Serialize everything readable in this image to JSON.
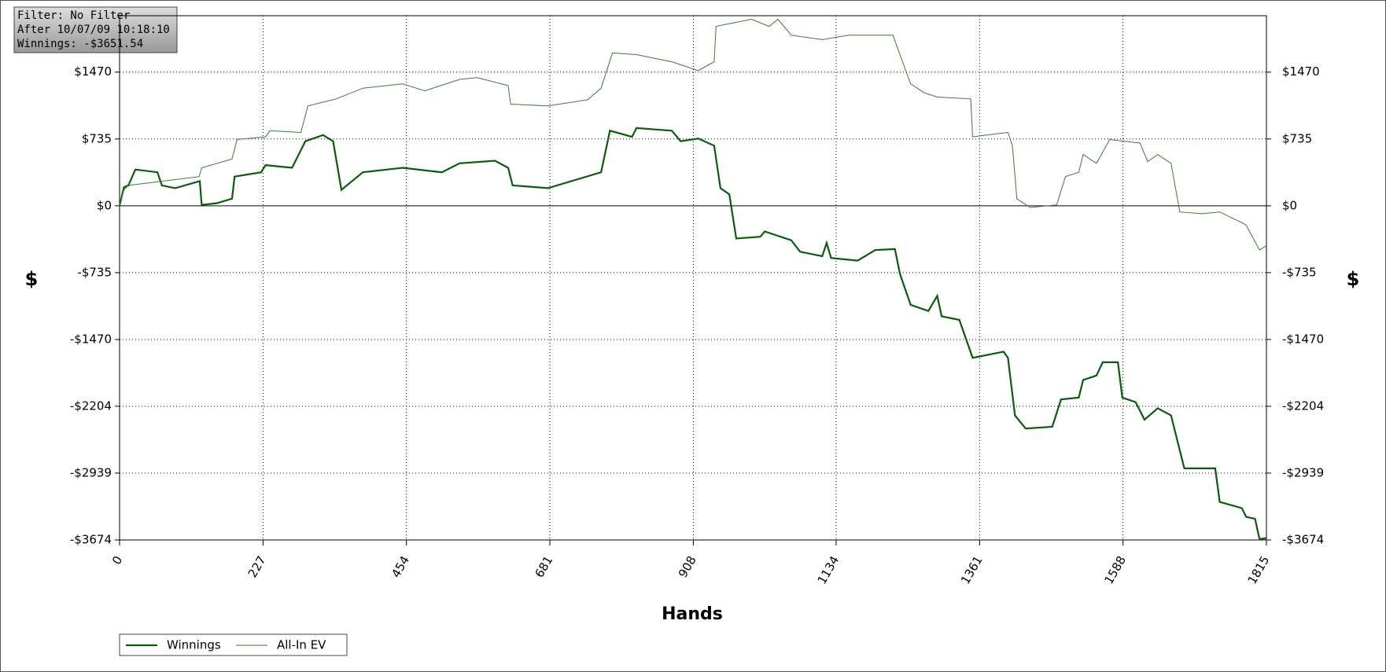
{
  "chart_data": {
    "type": "line",
    "annotations": [
      "Filter: No Filter",
      "After 10/07/09 10:18:10",
      "Winnings: -$3651.54"
    ],
    "x_label": "Hands",
    "y_label": "$",
    "y2_label": "$",
    "xlim": [
      0,
      1815
    ],
    "xticks": [
      0,
      227,
      454,
      681,
      908,
      1134,
      1361,
      1588,
      1815
    ],
    "ylim": [
      -3674,
      2090
    ],
    "yticks": [
      {
        "value": 1470,
        "label": "$1470"
      },
      {
        "value": 735,
        "label": "$735"
      },
      {
        "value": 0,
        "label": "$0"
      },
      {
        "value": -735,
        "label": "-$735"
      },
      {
        "value": -1470,
        "label": "-$1470"
      },
      {
        "value": -2204,
        "label": "-$2204"
      },
      {
        "value": -2939,
        "label": "-$2939"
      },
      {
        "value": -3674,
        "label": "-$3674"
      }
    ],
    "grid": true,
    "legend": "bottom-left",
    "series": [
      {
        "name": "Winnings",
        "color": "#0a5c0a",
        "x": [
          0,
          7,
          14,
          25,
          60,
          67,
          88,
          127,
          130,
          154,
          178,
          182,
          224,
          231,
          273,
          294,
          322,
          338,
          351,
          385,
          448,
          510,
          538,
          594,
          615,
          622,
          678,
          762,
          776,
          811,
          818,
          874,
          888,
          916,
          941,
          951,
          965,
          976,
          1014,
          1021,
          1063,
          1077,
          1112,
          1119,
          1126,
          1168,
          1196,
          1227,
          1235,
          1252,
          1280,
          1294,
          1301,
          1329,
          1350,
          1385,
          1399,
          1406,
          1417,
          1434,
          1476,
          1490,
          1518,
          1525,
          1546,
          1556,
          1580,
          1587,
          1608,
          1622,
          1643,
          1664,
          1685,
          1734,
          1741,
          1776,
          1783,
          1797,
          1804,
          1815
        ],
        "values": [
          0,
          204,
          224,
          399,
          369,
          224,
          194,
          272,
          10,
          29,
          78,
          321,
          369,
          447,
          418,
          710,
          778,
          710,
          175,
          369,
          418,
          369,
          467,
          496,
          418,
          224,
          194,
          369,
          826,
          758,
          855,
          826,
          710,
          739,
          661,
          194,
          126,
          -360,
          -340,
          -282,
          -379,
          -505,
          -554,
          -408,
          -573,
          -603,
          -486,
          -476,
          -748,
          -1089,
          -1157,
          -991,
          -1215,
          -1254,
          -1672,
          -1623,
          -1604,
          -1672,
          -2304,
          -2449,
          -2430,
          -2129,
          -2109,
          -1915,
          -1866,
          -1720,
          -1720,
          -2109,
          -2158,
          -2352,
          -2226,
          -2304,
          -2887,
          -2887,
          -3256,
          -3324,
          -3421,
          -3441,
          -3665,
          -3652
        ]
      },
      {
        "name": "All-In EV",
        "color": "#3a7a3a",
        "x": [
          0,
          7,
          14,
          126,
          130,
          178,
          186,
          231,
          238,
          287,
          298,
          343,
          385,
          448,
          483,
          538,
          566,
          615,
          619,
          678,
          741,
          762,
          780,
          818,
          874,
          916,
          941,
          944,
          1000,
          1028,
          1042,
          1063,
          1112,
          1154,
          1224,
          1238,
          1252,
          1273,
          1294,
          1347,
          1350,
          1406,
          1413,
          1420,
          1441,
          1483,
          1497,
          1518,
          1525,
          1546,
          1567,
          1615,
          1627,
          1643,
          1664,
          1678,
          1713,
          1741,
          1776,
          1783,
          1804,
          1815
        ],
        "values": [
          0,
          175,
          224,
          321,
          418,
          515,
          729,
          758,
          826,
          807,
          1098,
          1176,
          1293,
          1341,
          1264,
          1390,
          1409,
          1322,
          1118,
          1098,
          1166,
          1293,
          1681,
          1662,
          1584,
          1487,
          1584,
          1973,
          2051,
          1973,
          2051,
          1876,
          1827,
          1876,
          1876,
          1604,
          1341,
          1244,
          1196,
          1176,
          758,
          807,
          661,
          78,
          -19,
          10,
          321,
          369,
          564,
          467,
          729,
          690,
          486,
          564,
          467,
          -68,
          -87,
          -68,
          -185,
          -214,
          -486,
          -437
        ]
      }
    ]
  }
}
